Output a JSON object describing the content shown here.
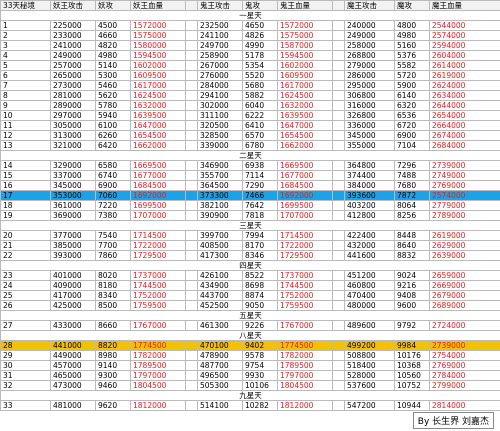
{
  "header": [
    "33天秘境",
    "妖王攻击",
    "妖攻",
    "妖王血量",
    "鬼王攻击",
    "鬼攻",
    "鬼王血量",
    "魔王攻击",
    "魔攻",
    "魔王血量"
  ],
  "sections": [
    {
      "title": "一星天",
      "rows": [
        {
          "cells": [
            "1",
            "225000",
            "4500",
            "1572000",
            "232500",
            "4650",
            "1572000",
            "240000",
            "4800",
            "2544000"
          ]
        },
        {
          "cells": [
            "2",
            "233000",
            "4660",
            "1575000",
            "241100",
            "4826",
            "1575000",
            "249000",
            "4980",
            "2574000"
          ]
        },
        {
          "cells": [
            "3",
            "241000",
            "4820",
            "1580000",
            "249700",
            "4990",
            "1587000",
            "258000",
            "5160",
            "2594000"
          ]
        },
        {
          "cells": [
            "4",
            "249000",
            "4980",
            "1594500",
            "258900",
            "5178",
            "1594500",
            "268800",
            "5376",
            "2604000"
          ]
        },
        {
          "cells": [
            "5",
            "257000",
            "5140",
            "1602000",
            "267000",
            "5354",
            "1602000",
            "279000",
            "5582",
            "2614000"
          ]
        },
        {
          "cells": [
            "6",
            "265000",
            "5300",
            "1609500",
            "276000",
            "5520",
            "1609500",
            "286000",
            "5720",
            "2619000"
          ]
        },
        {
          "cells": [
            "7",
            "273000",
            "5460",
            "1617000",
            "284000",
            "5680",
            "1617000",
            "295000",
            "5900",
            "2624000"
          ]
        },
        {
          "cells": [
            "8",
            "281000",
            "5620",
            "1624500",
            "294100",
            "5882",
            "1624500",
            "306800",
            "6140",
            "2634000"
          ]
        },
        {
          "cells": [
            "9",
            "289000",
            "5780",
            "1632000",
            "302000",
            "6040",
            "1632000",
            "316000",
            "6320",
            "2644000"
          ]
        },
        {
          "cells": [
            "10",
            "297000",
            "5940",
            "1639500",
            "311100",
            "6222",
            "1639500",
            "326800",
            "6536",
            "2654000"
          ]
        },
        {
          "cells": [
            "11",
            "305000",
            "6100",
            "1647000",
            "320500",
            "6410",
            "1647000",
            "336000",
            "6720",
            "2664000"
          ]
        },
        {
          "cells": [
            "12",
            "313000",
            "6260",
            "1654500",
            "328500",
            "6570",
            "1654500",
            "345000",
            "6900",
            "2674000"
          ]
        },
        {
          "cells": [
            "13",
            "321000",
            "6420",
            "1662000",
            "339000",
            "6780",
            "1662000",
            "355000",
            "7104",
            "2684000"
          ]
        }
      ]
    },
    {
      "title": "二星天",
      "rows": [
        {
          "cells": [
            "14",
            "329000",
            "6580",
            "1669500",
            "346900",
            "6938",
            "1669500",
            "364800",
            "7296",
            "2739000"
          ]
        },
        {
          "cells": [
            "15",
            "337000",
            "6740",
            "1677000",
            "355700",
            "7114",
            "1677000",
            "374400",
            "7488",
            "2749000"
          ]
        },
        {
          "cells": [
            "16",
            "345000",
            "6900",
            "1684500",
            "364500",
            "7290",
            "1684500",
            "384000",
            "7680",
            "2769000"
          ]
        },
        {
          "cells": [
            "17",
            "353000",
            "7060",
            "1692000",
            "373300",
            "7466",
            "1692000",
            "393600",
            "7872",
            "2574000"
          ],
          "highlight": "#1aa3e8"
        },
        {
          "cells": [
            "18",
            "361000",
            "7220",
            "1699500",
            "382100",
            "7642",
            "1699500",
            "403200",
            "8064",
            "2779000"
          ]
        },
        {
          "cells": [
            "19",
            "369000",
            "7380",
            "1707000",
            "390900",
            "7818",
            "1707000",
            "412800",
            "8256",
            "2789000"
          ]
        }
      ]
    },
    {
      "title": "三星天",
      "rows": [
        {
          "cells": [
            "20",
            "377000",
            "7540",
            "1714500",
            "399700",
            "7994",
            "1714500",
            "422400",
            "8448",
            "2619000"
          ]
        },
        {
          "cells": [
            "21",
            "385000",
            "7700",
            "1722000",
            "408500",
            "8170",
            "1722000",
            "432000",
            "8640",
            "2629000"
          ]
        },
        {
          "cells": [
            "22",
            "393000",
            "7860",
            "1729500",
            "417300",
            "8346",
            "1729500",
            "441600",
            "8832",
            "2639000"
          ]
        }
      ]
    },
    {
      "title": "四星天",
      "rows": [
        {
          "cells": [
            "23",
            "401000",
            "8020",
            "1737000",
            "426100",
            "8522",
            "1737000",
            "451200",
            "9024",
            "2659000"
          ]
        },
        {
          "cells": [
            "24",
            "409000",
            "8180",
            "1744500",
            "434900",
            "8698",
            "1744500",
            "460800",
            "9216",
            "2669000"
          ]
        },
        {
          "cells": [
            "25",
            "417000",
            "8340",
            "1752000",
            "443700",
            "8874",
            "1752000",
            "470400",
            "9408",
            "2679000"
          ]
        },
        {
          "cells": [
            "26",
            "425000",
            "8500",
            "1759500",
            "452500",
            "9050",
            "1759500",
            "480000",
            "9600",
            "2689000"
          ]
        }
      ]
    },
    {
      "title": "五星天",
      "rows": [
        {
          "cells": [
            "27",
            "433000",
            "8660",
            "1767000",
            "461300",
            "9226",
            "1767000",
            "489600",
            "9792",
            "2724000"
          ]
        }
      ]
    },
    {
      "title": "八星天",
      "rows": [
        {
          "cells": [
            "28",
            "441000",
            "8820",
            "1774500",
            "470100",
            "9402",
            "1774500",
            "499200",
            "9984",
            "2739000"
          ],
          "highlight": "#f5c000"
        },
        {
          "cells": [
            "29",
            "449000",
            "8980",
            "1782000",
            "478900",
            "9578",
            "1782000",
            "508800",
            "10176",
            "2754000"
          ]
        },
        {
          "cells": [
            "30",
            "457000",
            "9140",
            "1789500",
            "487700",
            "9754",
            "1789500",
            "518400",
            "10368",
            "2769000"
          ]
        },
        {
          "cells": [
            "31",
            "465000",
            "9300",
            "1797000",
            "496500",
            "9930",
            "1797000",
            "528000",
            "10560",
            "2784000"
          ]
        },
        {
          "cells": [
            "32",
            "473000",
            "9460",
            "1804500",
            "505300",
            "10106",
            "1804500",
            "537600",
            "10752",
            "2799000"
          ]
        }
      ]
    },
    {
      "title": "九星天",
      "rows": [
        {
          "cells": [
            "33",
            "481000",
            "9620",
            "1812000",
            "514100",
            "10282",
            "1812000",
            "547200",
            "10944",
            "2814000"
          ]
        }
      ]
    }
  ],
  "footer": "By 长生界 刘嘉杰"
}
